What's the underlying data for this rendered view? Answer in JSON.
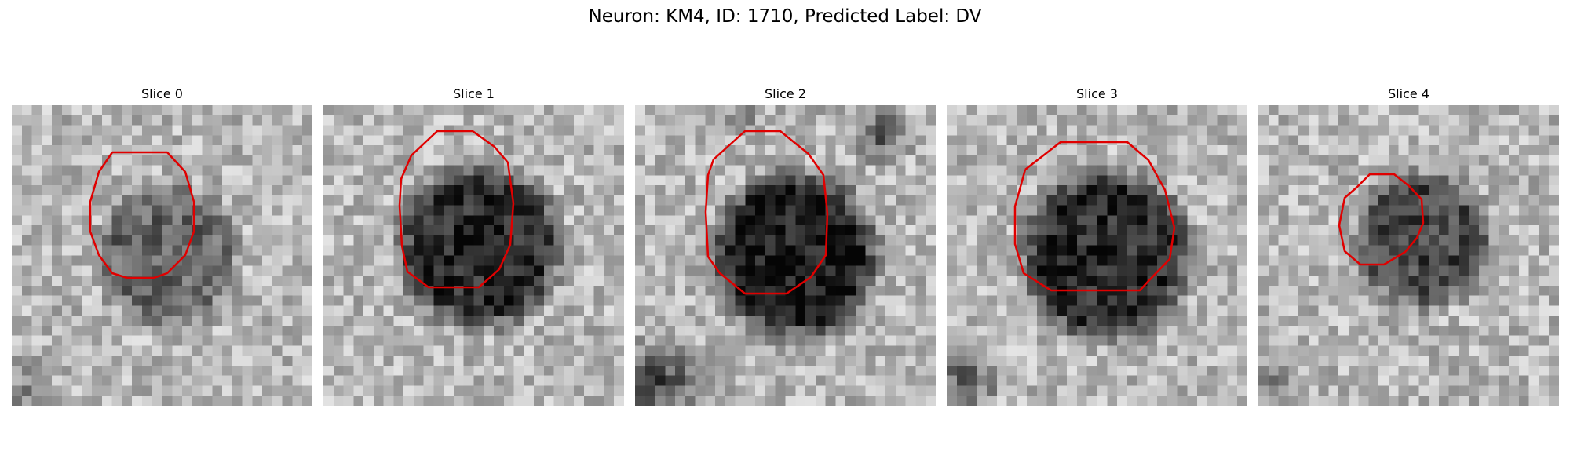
{
  "figure": {
    "title": "Neuron: KM4, ID: 1710, Predicted Label: DV",
    "outline_color": "#e00000"
  },
  "slices": [
    {
      "label": "Slice 0"
    },
    {
      "label": "Slice 1"
    },
    {
      "label": "Slice 2"
    },
    {
      "label": "Slice 3"
    },
    {
      "label": "Slice 4"
    }
  ]
}
